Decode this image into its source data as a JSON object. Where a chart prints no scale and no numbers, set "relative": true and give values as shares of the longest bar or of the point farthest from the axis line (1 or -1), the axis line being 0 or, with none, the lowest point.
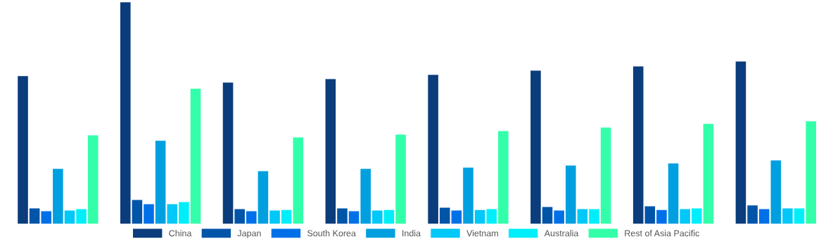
{
  "chart_data": {
    "type": "bar",
    "relative": true,
    "categories": [
      null,
      null,
      null,
      null,
      null,
      null,
      null,
      null
    ],
    "legend": "bottom",
    "grid": false,
    "series": [
      {
        "name": "China",
        "color": "#0b3c7c",
        "values": [
          0.667,
          1.0,
          0.638,
          0.654,
          0.673,
          0.692,
          0.711,
          0.733
        ]
      },
      {
        "name": "Japan",
        "color": "#0055a8",
        "values": [
          0.07,
          0.108,
          0.067,
          0.07,
          0.073,
          0.076,
          0.079,
          0.083
        ]
      },
      {
        "name": "South Korea",
        "color": "#0070e8",
        "values": [
          0.057,
          0.089,
          0.057,
          0.057,
          0.06,
          0.06,
          0.063,
          0.067
        ]
      },
      {
        "name": "India",
        "color": "#00a0e0",
        "values": [
          0.248,
          0.375,
          0.238,
          0.248,
          0.254,
          0.263,
          0.273,
          0.286
        ]
      },
      {
        "name": "Vietnam",
        "color": "#00c8f8",
        "values": [
          0.06,
          0.089,
          0.06,
          0.06,
          0.063,
          0.067,
          0.067,
          0.07
        ]
      },
      {
        "name": "Australia",
        "color": "#00eefa",
        "values": [
          0.067,
          0.098,
          0.063,
          0.063,
          0.067,
          0.067,
          0.07,
          0.07
        ]
      },
      {
        "name": "Rest of Asia Pacific",
        "color": "#33ffaa",
        "values": [
          0.4,
          0.61,
          0.39,
          0.403,
          0.419,
          0.435,
          0.451,
          0.463
        ]
      }
    ]
  }
}
